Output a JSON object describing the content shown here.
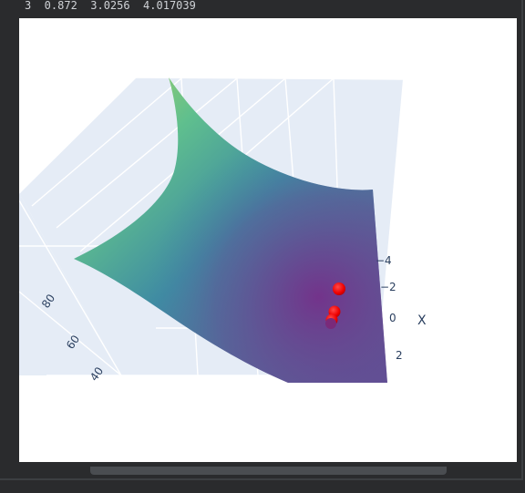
{
  "output": {
    "text_line": "3  0.872  3.0256  4.017039"
  },
  "plot": {
    "x_axis": {
      "title": "X",
      "ticks": [
        "−4",
        "−2",
        "0",
        "2"
      ]
    },
    "y_axis": {
      "ticks": [
        "80",
        "60",
        "40"
      ]
    },
    "colors": {
      "scene_bg": "#e5ecf6",
      "grid": "#ffffff",
      "marker": "#ff0000",
      "colorscale": [
        "#440154",
        "#3b528b",
        "#21908d",
        "#5dc963",
        "#fde725"
      ]
    },
    "surface_colorscale_name": "Viridis",
    "markers_count": 4
  }
}
